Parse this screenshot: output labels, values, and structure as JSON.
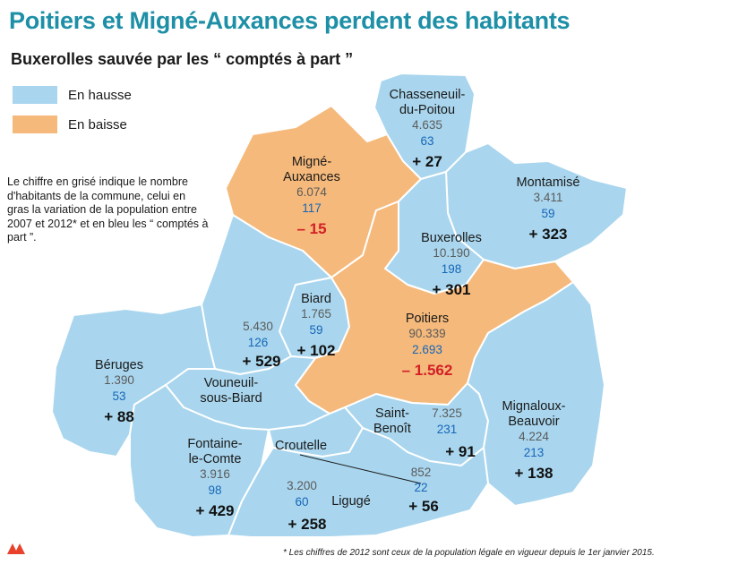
{
  "title": "Poitiers et Migné-Auxances perdent des habitants",
  "subtitle": "Buxerolles sauvée par les “ comptés à part ”",
  "legend": [
    {
      "label": "En hausse",
      "color": "#a9d6ee"
    },
    {
      "label": "En baisse",
      "color": "#f5b97b"
    }
  ],
  "note": "Le chiffre en grisé indique le nombre d'habitants de la commune, celui en gras la variation de la population entre 2007 et 2012* et en bleu les “ comptés à part ”.",
  "footnote": "* Les chiffres de 2012 sont ceux de la population légale en vigueur depuis le 1er janvier 2015.",
  "colors": {
    "title": "#1d8fa6",
    "hausse": "#a9d6ee",
    "baisse": "#f5b97b",
    "apart": "#1666b8",
    "negative": "#d32027",
    "logo": "#e8412c"
  },
  "communes": [
    {
      "name_lines": [
        "Chasseneuil-",
        "du-Poitou"
      ],
      "population": "4.635",
      "comptes_a_part": "63",
      "variation": "+ 27",
      "trend": "hausse"
    },
    {
      "name_lines": [
        "Montamisé"
      ],
      "population": "3.411",
      "comptes_a_part": "59",
      "variation": "+ 323",
      "trend": "hausse"
    },
    {
      "name_lines": [
        "Migné-",
        "Auxances"
      ],
      "population": "6.074",
      "comptes_a_part": "117",
      "variation": "– 15",
      "trend": "baisse"
    },
    {
      "name_lines": [
        "Buxerolles"
      ],
      "population": "10.190",
      "comptes_a_part": "198",
      "variation": "+ 301",
      "trend": "hausse"
    },
    {
      "name_lines": [
        "Biard"
      ],
      "population": "1.765",
      "comptes_a_part": "59",
      "variation": "+ 102",
      "trend": "hausse"
    },
    {
      "name_lines": [],
      "population": "5.430",
      "comptes_a_part": "126",
      "variation": "+ 529",
      "trend": "hausse"
    },
    {
      "name_lines": [
        "Poitiers"
      ],
      "population": "90.339",
      "comptes_a_part": "2.693",
      "variation": "– 1.562",
      "trend": "baisse"
    },
    {
      "name_lines": [
        "Béruges"
      ],
      "population": "1.390",
      "comptes_a_part": "53",
      "variation": "+ 88",
      "trend": "hausse"
    },
    {
      "name_lines": [
        "Vouneuil-",
        "sous-Biard"
      ],
      "population": "",
      "comptes_a_part": "",
      "variation": "",
      "trend": "hausse"
    },
    {
      "name_lines": [
        "Saint-",
        "Benoît"
      ],
      "population": "7.325",
      "comptes_a_part": "231",
      "variation": "+ 91",
      "trend": "hausse"
    },
    {
      "name_lines": [
        "Mignaloux-",
        "Beauvoir"
      ],
      "population": "4.224",
      "comptes_a_part": "213",
      "variation": "+ 138",
      "trend": "hausse"
    },
    {
      "name_lines": [
        "Fontaine-",
        "le-Comte"
      ],
      "population": "3.916",
      "comptes_a_part": "98",
      "variation": "+ 429",
      "trend": "hausse"
    },
    {
      "name_lines": [
        "Croutelle"
      ],
      "population": "852",
      "comptes_a_part": "22",
      "variation": "+ 56",
      "trend": "hausse"
    },
    {
      "name_lines": [
        "Ligugé"
      ],
      "population": "3.200",
      "comptes_a_part": "60",
      "variation": "+ 258",
      "trend": "hausse"
    }
  ]
}
